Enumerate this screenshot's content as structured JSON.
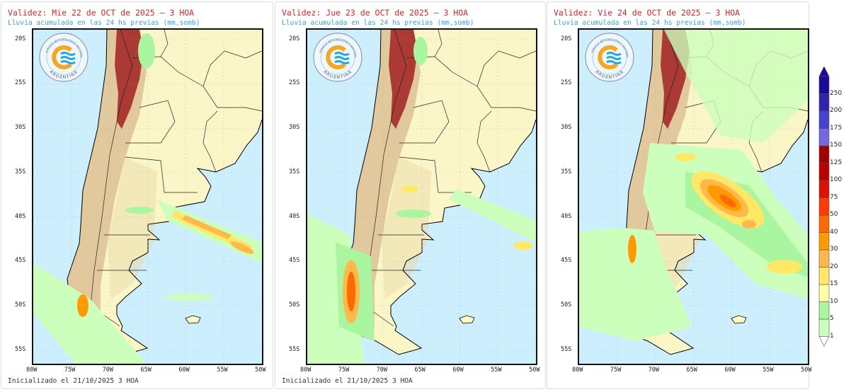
{
  "panels": [
    {
      "title": "Validez: Mie 22 de OCT de 2025 – 3 HOA",
      "subtitle": "Lluvia acumulada en las 24 hs previas (mm,somb)",
      "footer": "Inicializado el 21/10/2025 3 HOA"
    },
    {
      "title": "Validez: Jue 23 de OCT de 2025 – 3 HOA",
      "subtitle": "Lluvia acumulada en las 24 hs previas (mm,somb)",
      "footer": "Inicializado el 21/10/2025 3 HOA"
    },
    {
      "title": "Validez: Vie 24 de OCT de 2025 – 3 HOA",
      "subtitle": "Lluvia acumulada en las 24 hs previas (mm,somb)",
      "footer": ""
    }
  ],
  "logo": {
    "top_text": "SERVICIO METEOROLÓGICO NACIONAL",
    "bottom_text": "ARGENTINA"
  },
  "axes": {
    "lat": [
      {
        "v": -20,
        "label": "20S"
      },
      {
        "v": -25,
        "label": "25S"
      },
      {
        "v": -30,
        "label": "30S"
      },
      {
        "v": -35,
        "label": "35S"
      },
      {
        "v": -40,
        "label": "40S"
      },
      {
        "v": -45,
        "label": "45S"
      },
      {
        "v": -50,
        "label": "50S"
      },
      {
        "v": -55,
        "label": "55S"
      }
    ],
    "lon": [
      {
        "v": -80,
        "label": "80W"
      },
      {
        "v": -75,
        "label": "75W"
      },
      {
        "v": -70,
        "label": "70W"
      },
      {
        "v": -65,
        "label": "65W"
      },
      {
        "v": -60,
        "label": "60W"
      },
      {
        "v": -55,
        "label": "55W"
      },
      {
        "v": -50,
        "label": "50W"
      }
    ]
  },
  "colorbar": {
    "levels": [
      "1",
      "5",
      "10",
      "15",
      "20",
      "30",
      "40",
      "50",
      "75",
      "100",
      "125",
      "150",
      "175",
      "200",
      "250"
    ],
    "colors": [
      "#ccffbb",
      "#aaf5a0",
      "#ffffaa",
      "#ffe866",
      "#ffb84a",
      "#ff9a00",
      "#ff6a00",
      "#ff3a00",
      "#dd1100",
      "#bb0000",
      "#a00000",
      "#7766dd",
      "#4444cc",
      "#3322aa",
      "#1a0a99"
    ]
  },
  "colors": {
    "ocean": "#cdeefc",
    "land": "#fbf6c8",
    "andes": "#d8b98a",
    "high": "#a52a2a"
  }
}
